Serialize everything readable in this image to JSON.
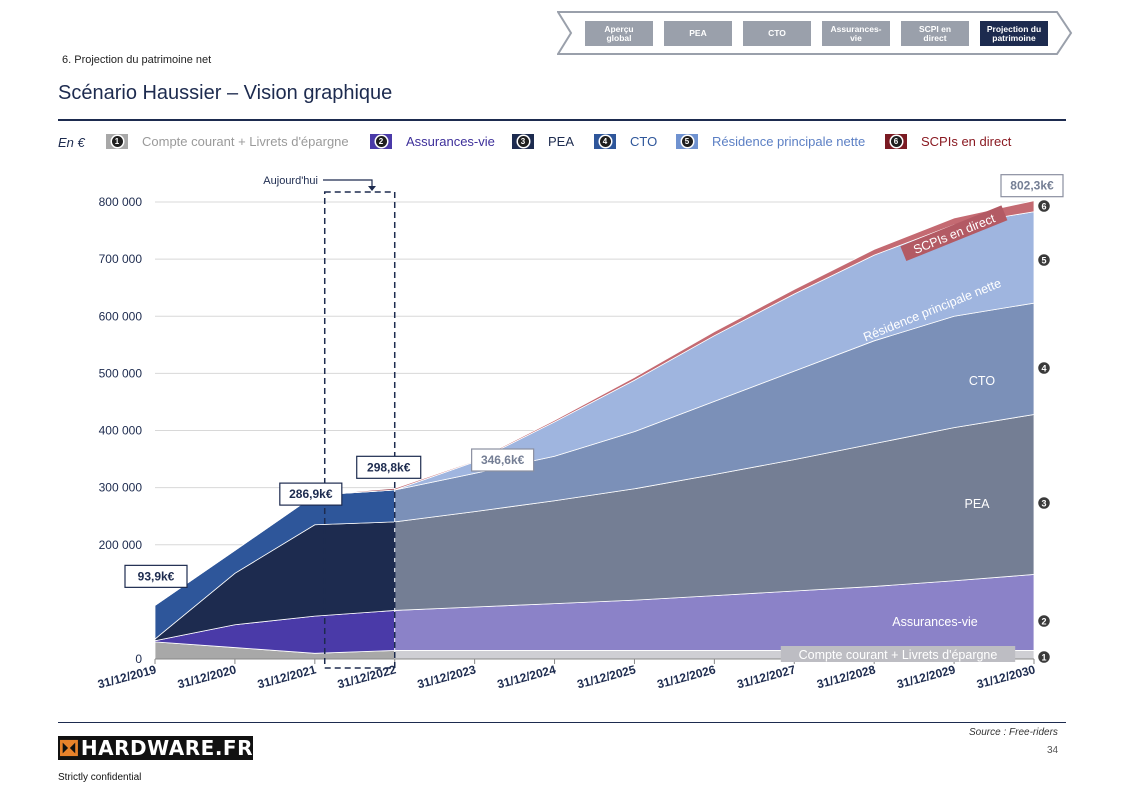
{
  "nav": {
    "tabs": [
      {
        "label": "Aperçu\nglobal",
        "active": false
      },
      {
        "label": "PEA",
        "active": false
      },
      {
        "label": "CTO",
        "active": false
      },
      {
        "label": "Assurances-\nvie",
        "active": false
      },
      {
        "label": "SCPI en\ndirect",
        "active": false
      },
      {
        "label": "Projection du\npatrimoine",
        "active": true
      }
    ]
  },
  "section_label": "6. Projection du patrimoine net",
  "page_title": "Scénario Haussier – Vision graphique",
  "legend": {
    "unit_label": "En €",
    "items": [
      {
        "num": "1",
        "label": "Compte courant + Livrets d'épargne",
        "color": "#a8a8a8",
        "text_color": "#9a9a9a"
      },
      {
        "num": "2",
        "label": "Assurances-vie",
        "color": "#4a3aa8",
        "text_color": "#3d2f9a"
      },
      {
        "num": "3",
        "label": "PEA",
        "color": "#1d2b4f",
        "text_color": "#1d2b4f"
      },
      {
        "num": "4",
        "label": "CTO",
        "color": "#2e569a",
        "text_color": "#2e569a"
      },
      {
        "num": "5",
        "label": "Résidence principale nette",
        "color": "#6f92d0",
        "text_color": "#5b7fc4"
      },
      {
        "num": "6",
        "label": "SCPIs en direct",
        "color": "#7a1a22",
        "text_color": "#8a1a22"
      }
    ]
  },
  "chart_data": {
    "type": "area",
    "stacked": true,
    "x": [
      "31/12/2019",
      "31/12/2020",
      "31/12/2021",
      "31/12/2022",
      "31/12/2023",
      "31/12/2024",
      "31/12/2025",
      "31/12/2026",
      "31/12/2027",
      "31/12/2028",
      "31/12/2029",
      "31/12/2030"
    ],
    "ylim": [
      0,
      800000
    ],
    "yticks": [
      0,
      200000,
      300000,
      400000,
      500000,
      600000,
      700000,
      800000
    ],
    "ytick_labels": [
      "0",
      "200 000",
      "300 000",
      "400 000",
      "500 000",
      "600 000",
      "700 000",
      "800 000"
    ],
    "grid": true,
    "series": [
      {
        "name": "Compte courant + Livrets d'épargne",
        "values": [
          30000,
          20000,
          10000,
          15000,
          15000,
          15000,
          15000,
          15000,
          15000,
          15000,
          15000,
          15000
        ],
        "color_past": "#a8a8a8",
        "color_proj": "#cfcfd4"
      },
      {
        "name": "Assurances-vie",
        "values": [
          2000,
          40000,
          65000,
          70000,
          76000,
          82000,
          88000,
          96000,
          104000,
          112000,
          122000,
          133000
        ],
        "color_past": "#4a3aa8",
        "color_proj": "#8b82c8"
      },
      {
        "name": "PEA",
        "values": [
          3000,
          90000,
          160000,
          155000,
          167000,
          180000,
          195000,
          212000,
          230000,
          250000,
          268000,
          280000
        ],
        "color_past": "#1d2b4f",
        "color_proj": "#747e94"
      },
      {
        "name": "CTO",
        "values": [
          58900,
          40000,
          51900,
          55800,
          67000,
          78000,
          100000,
          128000,
          155000,
          180000,
          195000,
          195000
        ],
        "color_past": "#2e569a",
        "color_proj": "#7b90b8"
      },
      {
        "name": "Résidence principale nette",
        "values": [
          0,
          0,
          0,
          0,
          20000,
          60000,
          90000,
          115000,
          135000,
          150000,
          160000,
          160000
        ],
        "color_past": "#6f92d0",
        "color_proj": "#9fb5df"
      },
      {
        "name": "SCPIs en direct",
        "values": [
          0,
          0,
          0,
          3000,
          1600,
          3000,
          5000,
          7000,
          8000,
          10000,
          12000,
          19300
        ],
        "color_past": "#a04a55",
        "color_proj": "#c46a72"
      }
    ],
    "today_index": 3,
    "annotations": {
      "today_label": "Aujourd'hui",
      "value_labels": [
        {
          "x_index": 0,
          "text": "93,9k€"
        },
        {
          "x_index": 2,
          "text": "286,9k€"
        },
        {
          "x_index": 3,
          "text": "298,8k€"
        },
        {
          "x_index": 4,
          "text": "346,6k€"
        },
        {
          "x_index": 11,
          "text": "802,3k€"
        }
      ],
      "series_labels": [
        {
          "num": "6",
          "text": "SCPIs en direct"
        },
        {
          "num": "5",
          "text": "Résidence principale nette"
        },
        {
          "num": "4",
          "text": "CTO"
        },
        {
          "num": "3",
          "text": "PEA"
        },
        {
          "num": "2",
          "text": "Assurances-vie"
        },
        {
          "num": "1",
          "text": "Compte courant + Livrets d'épargne"
        }
      ]
    }
  },
  "footer": {
    "source": "Source : Free-riders",
    "page_number": "34",
    "logo_text": "HARDWARE.FR",
    "confidential": "Strictly confidential"
  }
}
